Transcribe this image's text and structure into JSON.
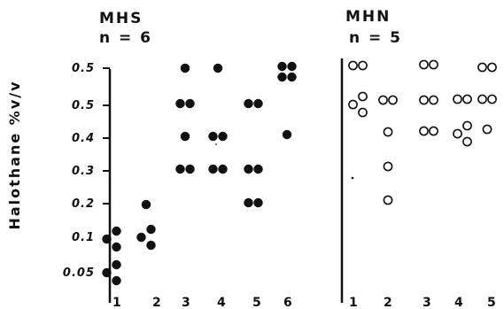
{
  "chart_data": {
    "type": "scatter",
    "ylabel": "Halothane %v/v",
    "y_tick_labels": [
      "0.5",
      "0.5",
      "0.4",
      "0.3",
      "0.2",
      "0.1",
      "0.05"
    ],
    "panels": [
      {
        "group": "MHS",
        "n_label": "n = 6",
        "marker": "filled",
        "categories": [
          "1",
          "2",
          "3",
          "4",
          "5",
          "6"
        ],
        "points": [
          {
            "x": "1",
            "y": "0.1",
            "count": 3
          },
          {
            "x": "1",
            "y": "0.05",
            "count": 3
          },
          {
            "x": "2",
            "y": "0.2",
            "count": 1
          },
          {
            "x": "2",
            "y": "0.1",
            "count": 3
          },
          {
            "x": "3",
            "y": "0.5",
            "count": 1
          },
          {
            "x": "3",
            "y": "0.5",
            "count": 2
          },
          {
            "x": "3",
            "y": "0.4",
            "count": 1
          },
          {
            "x": "3",
            "y": "0.3",
            "count": 2
          },
          {
            "x": "4",
            "y": "0.5",
            "count": 1
          },
          {
            "x": "4",
            "y": "0.4",
            "count": 2
          },
          {
            "x": "4",
            "y": "0.3",
            "count": 2
          },
          {
            "x": "5",
            "y": "0.5",
            "count": 2
          },
          {
            "x": "5",
            "y": "0.3",
            "count": 2
          },
          {
            "x": "5",
            "y": "0.2",
            "count": 2
          },
          {
            "x": "6",
            "y": "0.5",
            "count": 4
          },
          {
            "x": "6",
            "y": "0.4",
            "count": 1
          }
        ]
      },
      {
        "group": "MHN",
        "n_label": "n = 5",
        "marker": "open",
        "categories": [
          "1",
          "2",
          "3",
          "4",
          "5"
        ],
        "points": [
          {
            "x": "1",
            "y": "0.5",
            "count": 2
          },
          {
            "x": "1",
            "y": "0.5",
            "count": 3
          },
          {
            "x": "2",
            "y": "0.5",
            "count": 2
          },
          {
            "x": "2",
            "y": "0.4",
            "count": 1
          },
          {
            "x": "2",
            "y": "0.3",
            "count": 1
          },
          {
            "x": "2",
            "y": "0.2",
            "count": 1
          },
          {
            "x": "3",
            "y": "0.5",
            "count": 2
          },
          {
            "x": "3",
            "y": "0.5",
            "count": 2
          },
          {
            "x": "3",
            "y": "0.4",
            "count": 2
          },
          {
            "x": "4",
            "y": "0.5",
            "count": 2
          },
          {
            "x": "4",
            "y": "0.4",
            "count": 3
          },
          {
            "x": "5",
            "y": "0.5",
            "count": 2
          },
          {
            "x": "5",
            "y": "0.5",
            "count": 2
          },
          {
            "x": "5",
            "y": "0.4",
            "count": 1
          }
        ]
      }
    ]
  }
}
